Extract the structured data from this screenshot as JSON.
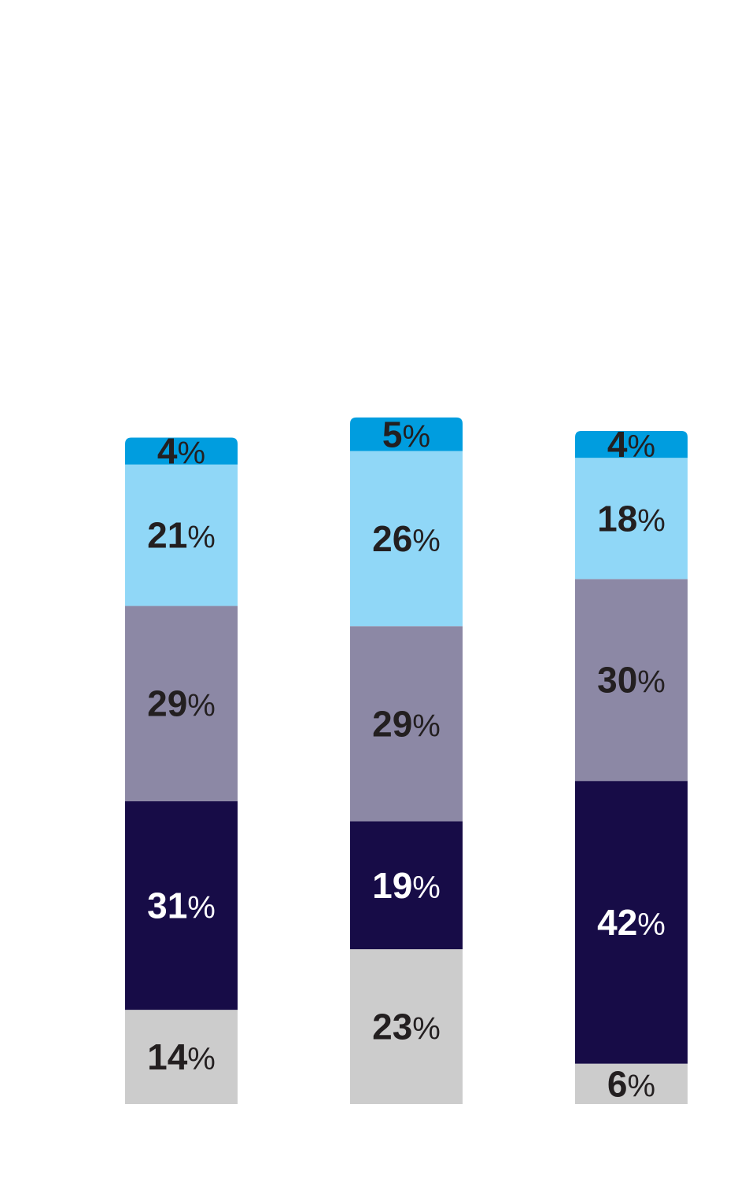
{
  "chart_data": {
    "type": "bar",
    "stacked": true,
    "normalized": true,
    "title": "",
    "xlabel": "",
    "ylabel": "",
    "categories": [
      "",
      "",
      ""
    ],
    "ylim": [
      0,
      100
    ],
    "grid": false,
    "legend": "none",
    "value_suffix": "%",
    "series": [
      {
        "color": "#cccccc",
        "label_color": "#231f20",
        "values": [
          14,
          23,
          6
        ]
      },
      {
        "color": "#170c47",
        "label_color": "#ffffff",
        "values": [
          31,
          19,
          42
        ]
      },
      {
        "color": "#8c88a5",
        "label_color": "#231f20",
        "values": [
          29,
          29,
          30
        ]
      },
      {
        "color": "#90d7f7",
        "label_color": "#231f20",
        "values": [
          21,
          26,
          18
        ]
      },
      {
        "color": "#009ddf",
        "label_color": "#231f20",
        "values": [
          4,
          5,
          4
        ]
      }
    ]
  }
}
